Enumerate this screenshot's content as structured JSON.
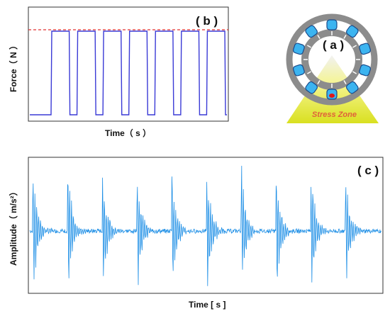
{
  "panel_b": {
    "label": "( b )",
    "xlabel": "Time（ s ）",
    "ylabel": "Force（ N ）"
  },
  "panel_a": {
    "label": "( a )",
    "stress_zone": "Stress Zone"
  },
  "panel_c": {
    "label": "( c )",
    "xlabel": "Time [ s ]",
    "ylabel": "Amplitude（ m/s²）"
  },
  "colors": {
    "signal": "#1e8fe6",
    "pulse": "#3a3ad6",
    "threshold": "#e23030",
    "bearing_ring": "#8c8c8c",
    "roller": "#3cb4f0",
    "stress_text": "#e0603a"
  },
  "chart_data": [
    {
      "type": "line",
      "panel": "b",
      "description_shape": "periodic rectangular force pulses with dashed peak level",
      "pulse_count": 7,
      "series": [
        {
          "values": [
            0,
            1,
            0,
            1,
            0,
            1,
            0,
            1,
            0,
            1,
            0,
            1,
            0,
            1,
            0
          ]
        }
      ],
      "threshold_level": 1,
      "xlabel": "Time（ s ）",
      "ylabel": "Force（ N ）"
    },
    {
      "type": "line",
      "panel": "c",
      "impulse_count": 10,
      "xlabel": "Time [ s ]",
      "ylabel": "Amplitude（ m/s²）"
    }
  ]
}
